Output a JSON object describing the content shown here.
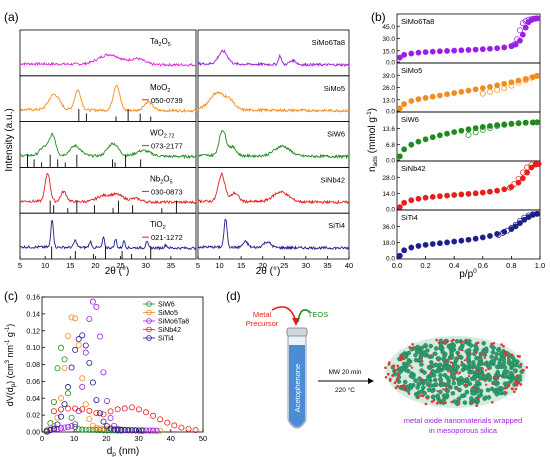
{
  "panel_labels": {
    "a": "(a)",
    "b": "(b)",
    "c": "(c)",
    "d": "(d)"
  },
  "chart_data": [
    {
      "id": "xrd_references",
      "type": "line",
      "xlabel": "2θ (°)",
      "ylabel": "Intensity (a.u.)",
      "xlim": [
        5,
        40
      ],
      "x_ticks": [
        5,
        10,
        15,
        20,
        25,
        30,
        35
      ],
      "series": [
        {
          "name": "Ta2O5",
          "label_main": "Ta",
          "label_sub1": "2",
          "label_mid": "O",
          "label_sub2": "5",
          "ref_card": "",
          "color": "#e61ee6",
          "peaks": [
            [
              22.8,
              0.35,
              3
            ],
            [
              28.3,
              0.2,
              2
            ]
          ]
        },
        {
          "name": "MoO2",
          "label_main": "MoO",
          "label_sub1": "2",
          "label_mid": "",
          "label_sub2": "",
          "ref_card": "050-0739",
          "color": "#f28c1e",
          "peaks": [
            [
              11.8,
              0.55,
              1.5
            ],
            [
              16.5,
              0.7,
              0.9
            ],
            [
              24.2,
              0.9,
              0.9
            ],
            [
              30.5,
              0.3,
              1.2
            ]
          ],
          "sticks": [
            16.7,
            18.2,
            24.1,
            26.5,
            28.9,
            31.0
          ]
        },
        {
          "name": "WO2.72",
          "label_main": "WO",
          "label_sub1": "2.72",
          "label_mid": "",
          "label_sub2": "",
          "ref_card": "073-2177",
          "color": "#1e8c1e",
          "peaks": [
            [
              9.8,
              0.3,
              1.2
            ],
            [
              11.5,
              0.7,
              0.9
            ],
            [
              16.0,
              0.35,
              1.5
            ],
            [
              23.5,
              0.45,
              1.5
            ],
            [
              29.5,
              0.2,
              2
            ]
          ],
          "sticks": [
            6.5,
            7.8,
            9.3,
            11.0,
            12.5,
            14.0,
            16.3,
            23.4,
            23.9,
            26.0,
            29.0
          ]
        },
        {
          "name": "Nb2O5",
          "label_main": "Nb",
          "label_sub1": "2",
          "label_mid": "O",
          "label_sub2": "5",
          "ref_card": "030-0873",
          "color": "#e61e1e",
          "peaks": [
            [
              10.5,
              1.0,
              0.7
            ],
            [
              13.7,
              0.35,
              0.8
            ],
            [
              21.5,
              0.2,
              1.8
            ],
            [
              24.3,
              0.25,
              1.8
            ],
            [
              28.0,
              0.12,
              1.5
            ]
          ],
          "sticks": [
            11.0,
            11.7,
            14.5,
            16.3,
            19.8,
            23.5,
            24.6,
            27.4,
            33.2,
            36.1
          ]
        },
        {
          "name": "TiO2",
          "label_main": "TiO",
          "label_sub1": "2",
          "label_mid": "",
          "label_sub2": "",
          "ref_card": "021-1272",
          "color": "#1e1e8c",
          "peaks": [
            [
              11.4,
              1.0,
              0.35
            ],
            [
              16.0,
              0.25,
              0.4
            ],
            [
              19.0,
              0.2,
              0.35
            ],
            [
              21.6,
              0.35,
              0.3
            ],
            [
              24.0,
              0.3,
              0.3
            ],
            [
              25.7,
              0.25,
              0.3
            ],
            [
              30.2,
              0.25,
              0.3
            ],
            [
              34.0,
              0.1,
              0.4
            ]
          ],
          "sticks": [
            11.3,
            16.0,
            19.6,
            22.0,
            25.3,
            27.2,
            31.0
          ]
        }
      ]
    },
    {
      "id": "xrd_composites",
      "type": "line",
      "xlabel": "2θ (°)",
      "xlim": [
        5,
        40
      ],
      "x_ticks": [
        5,
        10,
        15,
        20,
        25,
        30,
        35,
        40
      ],
      "series": [
        {
          "name": "SiMo6Ta8",
          "color": "#9b1ee6",
          "peaks": [
            [
              10.8,
              0.45,
              1.5
            ],
            [
              24.0,
              0.3,
              0.5
            ],
            [
              27.0,
              0.15,
              1
            ]
          ]
        },
        {
          "name": "SiMo5",
          "color": "#f28c1e",
          "peaks": [
            [
              9.5,
              0.6,
              2.5
            ],
            [
              12.5,
              0.25,
              1.5
            ]
          ]
        },
        {
          "name": "SiW6",
          "color": "#1e8c1e",
          "peaks": [
            [
              10.7,
              0.9,
              1.1
            ],
            [
              13.0,
              0.3,
              1.2
            ],
            [
              24.5,
              0.35,
              2.5
            ]
          ]
        },
        {
          "name": "SiNb42",
          "color": "#e61e1e",
          "peaks": [
            [
              10.5,
              0.95,
              1.1
            ],
            [
              13.5,
              0.3,
              1.2
            ],
            [
              24.2,
              0.35,
              2.5
            ]
          ]
        },
        {
          "name": "SiTi4",
          "color": "#1e1e8c",
          "peaks": [
            [
              11.4,
              1.0,
              0.5
            ],
            [
              16.0,
              0.2,
              0.8
            ],
            [
              21.0,
              0.2,
              1.2
            ]
          ]
        }
      ]
    },
    {
      "id": "n2_isotherms",
      "type": "scatter",
      "xlabel_main": "p/p",
      "xlabel_sup": "0",
      "ylabel_main": "n",
      "ylabel_sub": "ads",
      "ylabel_unit": " (mmol g",
      "ylabel_sup": "-1",
      "ylabel_end": ")",
      "xlim": [
        0,
        1
      ],
      "x_ticks": [
        "0.0",
        "0.2",
        "0.4",
        "0.6",
        "0.8",
        "1.0"
      ],
      "series": [
        {
          "name": "SiMo6Ta8",
          "color": "#9b1ee6",
          "ylim": [
            0,
            45
          ],
          "y_ticks": [
            "0.0",
            "15.0",
            "30.0",
            "45.0"
          ],
          "p": [
            0.02,
            0.05,
            0.1,
            0.15,
            0.2,
            0.25,
            0.3,
            0.35,
            0.4,
            0.45,
            0.5,
            0.55,
            0.6,
            0.65,
            0.7,
            0.75,
            0.8,
            0.83,
            0.86,
            0.88,
            0.9,
            0.92,
            0.94,
            0.96,
            0.98
          ],
          "ads": [
            5.0,
            7.5,
            8.7,
            9.5,
            10.0,
            10.4,
            10.8,
            11.1,
            11.4,
            11.7,
            12.0,
            12.3,
            12.7,
            13.1,
            13.6,
            14.3,
            15.5,
            17.0,
            20.5,
            26.0,
            32.5,
            37.5,
            39.5,
            40.5,
            41.0
          ],
          "des": [
            41.0,
            40.8,
            40.5,
            39.8,
            38.5,
            36.5,
            30.0,
            22.0,
            17.0,
            15.5
          ],
          "des_p": [
            0.98,
            0.96,
            0.94,
            0.92,
            0.9,
            0.88,
            0.86,
            0.84,
            0.82,
            0.8
          ]
        },
        {
          "name": "SiMo5",
          "color": "#f28c1e",
          "ylim": [
            0,
            40
          ],
          "y_ticks": [
            "0.0",
            "13.0",
            "26.0",
            "39.0"
          ],
          "p": [
            0.02,
            0.05,
            0.1,
            0.15,
            0.2,
            0.25,
            0.3,
            0.35,
            0.4,
            0.45,
            0.5,
            0.55,
            0.6,
            0.65,
            0.7,
            0.75,
            0.8,
            0.85,
            0.9,
            0.95,
            0.98
          ],
          "ads": [
            3.0,
            6.5,
            9.0,
            10.5,
            11.5,
            12.5,
            13.5,
            14.5,
            15.5,
            16.5,
            17.5,
            18.5,
            19.5,
            20.5,
            21.8,
            23.0,
            24.3,
            25.7,
            27.0,
            28.5,
            29.5
          ],
          "des": [
            29.5,
            28.0,
            26.0,
            24.0,
            21.5,
            19.5,
            18.0,
            16.5,
            15.0
          ],
          "des_p": [
            0.98,
            0.94,
            0.9,
            0.85,
            0.8,
            0.75,
            0.7,
            0.65,
            0.6
          ]
        },
        {
          "name": "SiW6",
          "color": "#1e8c1e",
          "ylim": [
            0,
            21
          ],
          "y_ticks": [
            "0.0",
            "6.8",
            "13.6"
          ],
          "p": [
            0.02,
            0.05,
            0.1,
            0.15,
            0.2,
            0.25,
            0.3,
            0.35,
            0.4,
            0.45,
            0.5,
            0.55,
            0.6,
            0.65,
            0.7,
            0.75,
            0.8,
            0.85,
            0.9,
            0.95,
            0.98
          ],
          "ads": [
            2.0,
            5.0,
            7.0,
            8.3,
            9.3,
            10.2,
            11.0,
            11.7,
            12.4,
            13.0,
            13.6,
            14.1,
            14.6,
            15.0,
            15.4,
            15.7,
            16.0,
            16.2,
            16.4,
            16.5,
            16.6
          ],
          "des": [
            16.6,
            16.5,
            16.4,
            16.2,
            15.9,
            15.5,
            15.0,
            14.2,
            13.3,
            12.3,
            11.2
          ],
          "des_p": [
            0.98,
            0.95,
            0.9,
            0.85,
            0.8,
            0.75,
            0.7,
            0.65,
            0.6,
            0.55,
            0.5
          ]
        },
        {
          "name": "SiNb42",
          "color": "#e61e1e",
          "ylim": [
            0,
            34
          ],
          "y_ticks": [
            "0.0",
            "14.0",
            "28.0"
          ],
          "p": [
            0.02,
            0.05,
            0.1,
            0.15,
            0.2,
            0.25,
            0.3,
            0.35,
            0.4,
            0.45,
            0.5,
            0.55,
            0.6,
            0.65,
            0.7,
            0.75,
            0.8,
            0.85,
            0.88,
            0.91,
            0.94,
            0.97,
            0.99
          ],
          "ads": [
            2.0,
            5.0,
            6.8,
            7.8,
            8.5,
            9.1,
            9.6,
            10.0,
            10.4,
            10.8,
            11.2,
            11.6,
            12.1,
            12.7,
            13.4,
            14.4,
            16.0,
            19.0,
            22.0,
            26.0,
            29.5,
            31.5,
            32.0
          ],
          "des": [
            32.0,
            31.8,
            31.2,
            29.5,
            26.0,
            21.5,
            18.0,
            15.5
          ],
          "des_p": [
            0.99,
            0.97,
            0.94,
            0.91,
            0.88,
            0.85,
            0.82,
            0.79
          ]
        },
        {
          "name": "SiTi4",
          "color": "#1e1e8c",
          "ylim": [
            0,
            45
          ],
          "y_ticks": [
            "0.0",
            "18.0",
            "36.0"
          ],
          "p": [
            0.02,
            0.05,
            0.1,
            0.15,
            0.2,
            0.25,
            0.3,
            0.35,
            0.4,
            0.45,
            0.5,
            0.55,
            0.6,
            0.65,
            0.7,
            0.75,
            0.8,
            0.83,
            0.86,
            0.89,
            0.92,
            0.95,
            0.98
          ],
          "ads": [
            3.0,
            8.0,
            10.5,
            12.0,
            13.0,
            13.8,
            14.5,
            15.2,
            16.0,
            16.8,
            17.7,
            18.7,
            19.8,
            21.2,
            23.0,
            25.0,
            27.5,
            30.0,
            33.0,
            36.0,
            38.5,
            40.5,
            41.5
          ],
          "des": [
            41.5,
            41.0,
            40.0,
            38.0,
            35.0,
            31.5,
            28.5,
            26.0,
            24.0,
            22.0
          ],
          "des_p": [
            0.98,
            0.95,
            0.92,
            0.89,
            0.86,
            0.83,
            0.8,
            0.77,
            0.74,
            0.71
          ]
        }
      ]
    },
    {
      "id": "pore_size_distribution",
      "type": "scatter",
      "ylabel": "dV(d",
      "ylabel_sub": "p",
      "ylabel_mid": ") (cm",
      "ylabel_sup3": "3",
      "ylabel_nm": " nm",
      "ylabel_sup1": "-1",
      "ylabel_g": " g",
      "ylabel_sup2": "-1",
      "ylabel_end": ")",
      "xlabel_main": "d",
      "xlabel_sub": "p",
      "xlabel_unit": " (nm)",
      "xlim": [
        0,
        50
      ],
      "ylim": [
        0,
        0.16
      ],
      "x_ticks": [
        "0",
        "10",
        "20",
        "30",
        "40",
        "50"
      ],
      "y_ticks": [
        "0.00",
        "0.02",
        "0.04",
        "0.06",
        "0.08",
        "0.10",
        "0.12",
        "0.14",
        "0.16"
      ],
      "legend_position": "top-right",
      "series": [
        {
          "name": "SiW6",
          "color": "#1e8c1e",
          "peak": 6.0,
          "height": 0.1,
          "width": 1.6,
          "tail": 0.004
        },
        {
          "name": "SiMo5",
          "color": "#f28c1e",
          "peak": 9.5,
          "height": 0.137,
          "width": 2.3,
          "tail": 0.006
        },
        {
          "name": "SiMo6Ta8",
          "color": "#9b1ee6",
          "peak": 16.0,
          "height": 0.155,
          "width": 2.4,
          "tail": 0.004
        },
        {
          "name": "SiNb42",
          "color": "#e61e1e",
          "peak": 26.0,
          "height": 0.028,
          "width": 9.0,
          "tail": 0.002
        },
        {
          "name": "SiTi4",
          "color": "#1e1e8c",
          "peak": 12.0,
          "height": 0.112,
          "width": 3.2,
          "tail": 0.004
        }
      ]
    }
  ],
  "schematic": {
    "metal_precursor": "Metal\nPrecursor",
    "teos": "TEOS",
    "tube_label": "Acetophenone",
    "arrow_top": "MW 20 min",
    "arrow_bottom": "220 °C",
    "caption_line1": "metal oxide nanomaterials wrapped",
    "caption_line2": "in mesoporous silica",
    "colors": {
      "metal_precursor": "#e61e1e",
      "teos": "#1e8c1e",
      "caption": "#9b1ee6",
      "tube_liquid": "#3b7fd0",
      "particle_core": "#2d9b6e",
      "particle_shell": "#e63232"
    }
  }
}
